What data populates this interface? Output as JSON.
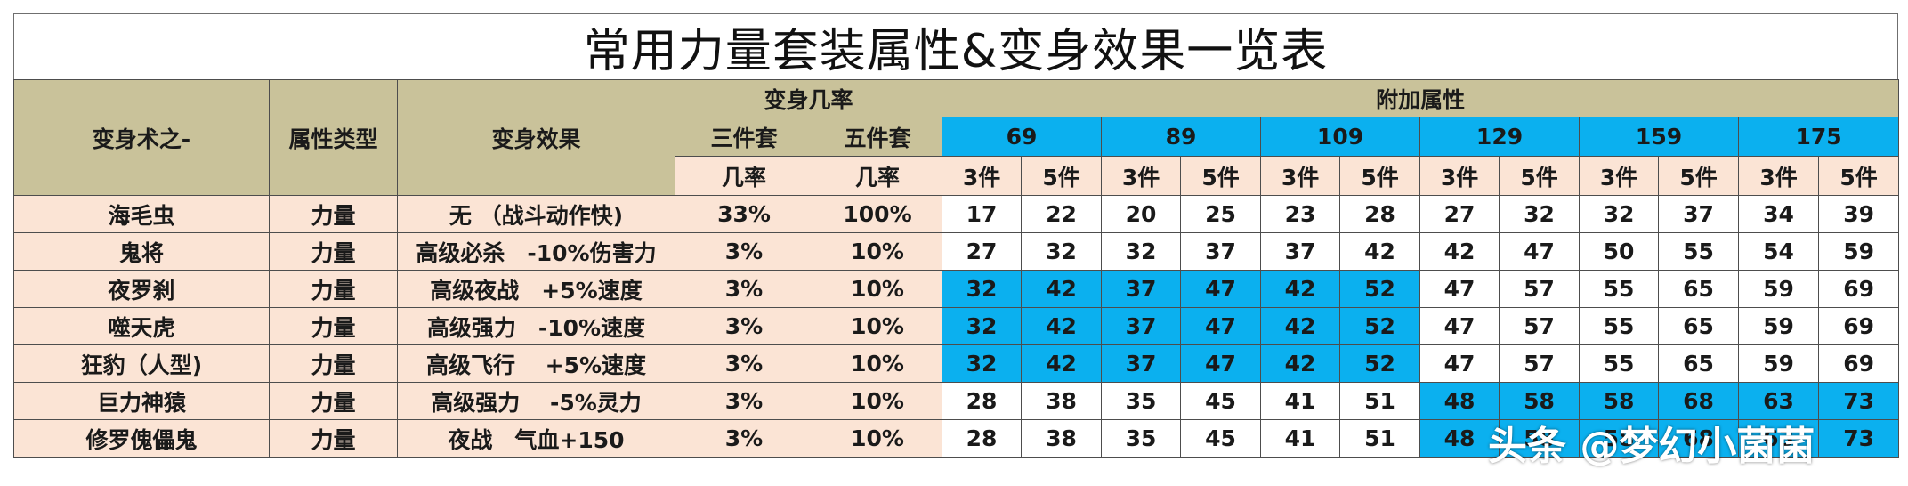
{
  "title": "常用力量套装属性&变身效果一览表",
  "headers": {
    "col_name": "变身术之-",
    "col_type": "属性类型",
    "col_effect": "变身效果",
    "rate_group": "变身几率",
    "three_set": "三件套",
    "five_set": "五件套",
    "rate": "几率",
    "bonus_group": "附加属性",
    "levels": [
      "69",
      "89",
      "109",
      "129",
      "159",
      "175"
    ],
    "piece3": "3件",
    "piece5": "5件"
  },
  "rows": [
    {
      "name": "海毛虫",
      "type": "力量",
      "effect": "无 （战斗动作快)",
      "r3": "33%",
      "r5": "100%",
      "vals": [
        "17",
        "22",
        "20",
        "25",
        "23",
        "28",
        "27",
        "32",
        "32",
        "37",
        "34",
        "39"
      ],
      "blue": [
        false,
        false,
        false,
        false,
        false,
        false,
        false,
        false,
        false,
        false,
        false,
        false
      ]
    },
    {
      "name": "鬼将",
      "type": "力量",
      "effect": "高级必杀　-10%伤害力",
      "r3": "3%",
      "r5": "10%",
      "vals": [
        "27",
        "32",
        "32",
        "37",
        "37",
        "42",
        "42",
        "47",
        "50",
        "55",
        "54",
        "59"
      ],
      "blue": [
        false,
        false,
        false,
        false,
        false,
        false,
        false,
        false,
        false,
        false,
        false,
        false
      ]
    },
    {
      "name": "夜罗刹",
      "type": "力量",
      "effect": "高级夜战　+5%速度",
      "r3": "3%",
      "r5": "10%",
      "vals": [
        "32",
        "42",
        "37",
        "47",
        "42",
        "52",
        "47",
        "57",
        "55",
        "65",
        "59",
        "69"
      ],
      "blue": [
        true,
        true,
        true,
        true,
        true,
        true,
        false,
        false,
        false,
        false,
        false,
        false
      ]
    },
    {
      "name": "噬天虎",
      "type": "力量",
      "effect": "高级强力　-10%速度",
      "r3": "3%",
      "r5": "10%",
      "vals": [
        "32",
        "42",
        "37",
        "47",
        "42",
        "52",
        "47",
        "57",
        "55",
        "65",
        "59",
        "69"
      ],
      "blue": [
        true,
        true,
        true,
        true,
        true,
        true,
        false,
        false,
        false,
        false,
        false,
        false
      ]
    },
    {
      "name": "狂豹（人型)",
      "type": "力量",
      "effect": "高级飞行　 +5%速度",
      "r3": "3%",
      "r5": "10%",
      "vals": [
        "32",
        "42",
        "37",
        "47",
        "42",
        "52",
        "47",
        "57",
        "55",
        "65",
        "59",
        "69"
      ],
      "blue": [
        true,
        true,
        true,
        true,
        true,
        true,
        false,
        false,
        false,
        false,
        false,
        false
      ]
    },
    {
      "name": "巨力神猿",
      "type": "力量",
      "effect": "高级强力　 -5%灵力",
      "r3": "3%",
      "r5": "10%",
      "vals": [
        "28",
        "38",
        "35",
        "45",
        "41",
        "51",
        "48",
        "58",
        "58",
        "68",
        "63",
        "73"
      ],
      "blue": [
        false,
        false,
        false,
        false,
        false,
        false,
        true,
        true,
        true,
        true,
        true,
        true
      ]
    },
    {
      "name": "修罗傀儡鬼",
      "type": "力量",
      "effect": "夜战　气血+150",
      "r3": "3%",
      "r5": "10%",
      "vals": [
        "28",
        "38",
        "35",
        "45",
        "41",
        "51",
        "48",
        "58",
        "58",
        "68",
        "63",
        "73"
      ],
      "blue": [
        false,
        false,
        false,
        false,
        false,
        false,
        true,
        true,
        true,
        true,
        true,
        true
      ]
    }
  ],
  "watermark": "头条 @梦幻小菌菌",
  "colors": {
    "header": "#c9c29a",
    "level_blue": "#0bb0ef",
    "pink": "#fbe4d5",
    "highlight_blue": "#0bb0ef"
  }
}
